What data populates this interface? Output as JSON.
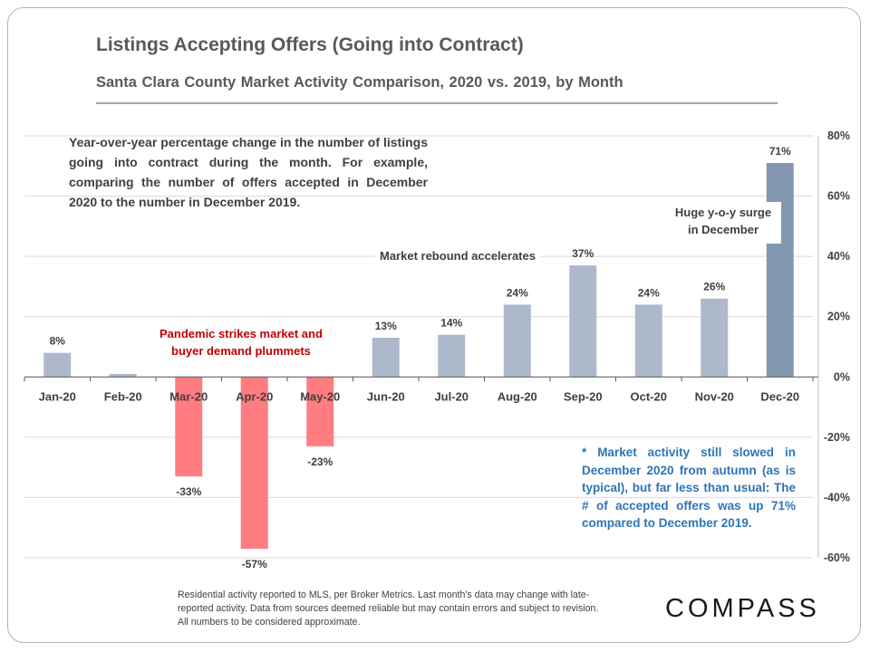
{
  "header": {
    "title": "Listings Accepting Offers (Going into Contract)",
    "subtitle": "Santa Clara County Market Activity Comparison,  2020 vs. 2019, by Month"
  },
  "notes": {
    "description": "Year-over-year percentage change in the number of listings going into contract during the month. For example, comparing the number of offers accepted in December 2020 to the number in December 2019.",
    "side_note": "* Market activity still slowed in December 2020 from autumn (as is typical), but far less than usual: The # of accepted offers was up 71% compared to December 2019.",
    "footer": "Residential activity reported to MLS, per Broker Metrics. Last month's data may change with late-reported activity. Data from sources deemed reliable but may contain errors and subject to revision. All numbers to be considered approximate."
  },
  "annotations": {
    "pandemic": "Pandemic strikes market and\nbuyer demand plummets",
    "rebound": "Market rebound accelerates",
    "surge": "Huge y-o-y surge\nin December"
  },
  "brand": {
    "logo": "COMPASS"
  },
  "colors": {
    "positive": "#adb9ca",
    "negative": "#ff7c80",
    "highlight": "#8497b0",
    "pandemic_text": "#c00000",
    "note_text": "#2e75b6"
  },
  "chart_data": {
    "type": "bar",
    "categories": [
      "Jan-20",
      "Feb-20",
      "Mar-20",
      "Apr-20",
      "May-20",
      "Jun-20",
      "Jul-20",
      "Aug-20",
      "Sep-20",
      "Oct-20",
      "Nov-20",
      "Dec-20"
    ],
    "values": [
      8,
      1,
      -33,
      -57,
      -23,
      13,
      14,
      24,
      37,
      24,
      26,
      71
    ],
    "data_labels": [
      "8%",
      "",
      "-33%",
      "-57%",
      "-23%",
      "13%",
      "14%",
      "24%",
      "37%",
      "24%",
      "26%",
      "71%"
    ],
    "ylim": [
      -60,
      80
    ],
    "yticks": [
      80,
      60,
      40,
      20,
      0,
      -20,
      -40,
      -60
    ],
    "ytick_labels": [
      "80%",
      "60%",
      "40%",
      "20%",
      "0%",
      "-20%",
      "-40%",
      "-60%"
    ],
    "y_axis_side": "right",
    "grid": true
  }
}
